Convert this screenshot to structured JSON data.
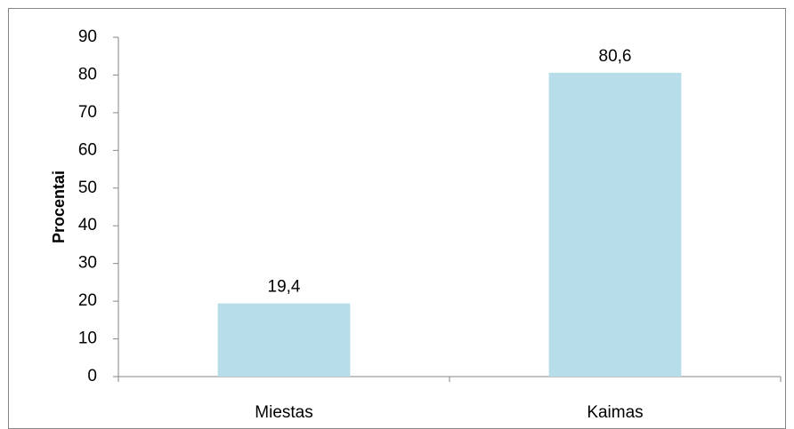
{
  "chart_data": {
    "type": "bar",
    "ylabel": "Procentai",
    "categories": [
      "Miestas",
      "Kaimas"
    ],
    "values": [
      19.4,
      80.6
    ],
    "value_labels": [
      "19,4",
      "80,6"
    ],
    "color": "#b7dde8",
    "ylim": [
      0,
      90
    ],
    "yticks": [
      0,
      10,
      20,
      30,
      40,
      50,
      60,
      70,
      80,
      90
    ],
    "grid": false
  }
}
